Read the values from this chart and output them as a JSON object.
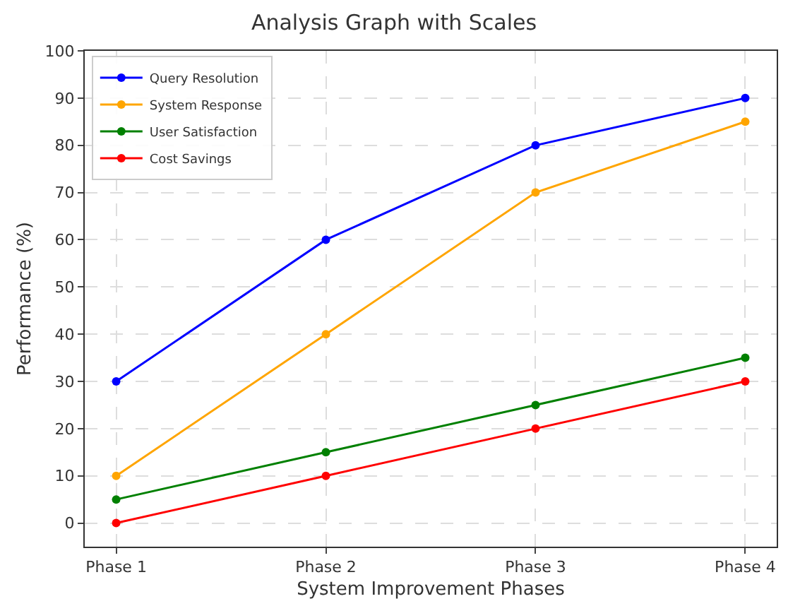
{
  "chart_data": {
    "type": "line",
    "title": "Analysis Graph with Scales",
    "xlabel": "System Improvement Phases",
    "ylabel": "Performance (%)",
    "categories": [
      "Phase 1",
      "Phase 2",
      "Phase 3",
      "Phase 4"
    ],
    "series": [
      {
        "name": "Query Resolution",
        "color": "#0000ff",
        "values": [
          30,
          60,
          80,
          90
        ]
      },
      {
        "name": "System Response",
        "color": "#ffa500",
        "values": [
          10,
          40,
          70,
          85
        ]
      },
      {
        "name": "User Satisfaction",
        "color": "#008000",
        "values": [
          5,
          15,
          25,
          35
        ]
      },
      {
        "name": "Cost Savings",
        "color": "#ff0000",
        "values": [
          0,
          10,
          20,
          30
        ]
      }
    ],
    "ylim": [
      -5,
      100
    ],
    "yticks": [
      0,
      10,
      20,
      30,
      40,
      50,
      60,
      70,
      80,
      90,
      100
    ],
    "grid": true,
    "legend": "top left",
    "marker": "circle",
    "line_style": "solid"
  }
}
